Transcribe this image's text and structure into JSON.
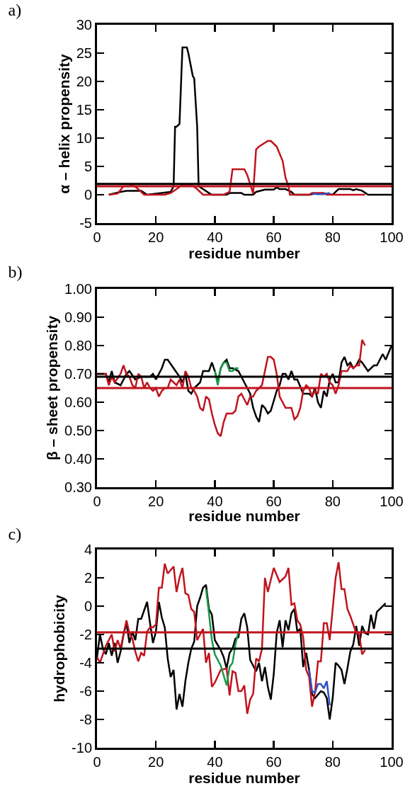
{
  "chart_data": [
    {
      "type": "line",
      "title": "a)",
      "xlabel": "residue number",
      "ylabel": "α – helix propensity",
      "xlim": [
        0,
        100
      ],
      "xticks": [
        0,
        20,
        40,
        60,
        80,
        100
      ],
      "ylim": [
        -5,
        30
      ],
      "yticks": [
        -5,
        0,
        5,
        10,
        15,
        20,
        25,
        30
      ],
      "line_style": "solid",
      "series": [
        {
          "color": "#000000",
          "x": [
            4,
            8,
            10,
            15,
            17,
            20,
            25,
            26,
            26.5,
            27,
            28,
            29,
            30.5,
            31,
            32.5,
            33,
            34,
            34.5,
            36,
            38,
            39,
            44,
            45,
            49,
            50,
            53,
            54,
            57,
            60,
            61,
            62,
            64,
            66,
            67,
            72,
            74,
            78,
            80,
            82,
            86,
            87,
            88,
            90,
            92,
            100
          ],
          "values": [
            0,
            0.5,
            0.7,
            0.7,
            0,
            0.2,
            0.5,
            1.5,
            12,
            12,
            12.5,
            26,
            26,
            25,
            21,
            20.5,
            12,
            1.5,
            1,
            0.3,
            0,
            0,
            0.3,
            0.3,
            0,
            0,
            0.5,
            0.9,
            0.9,
            1.3,
            1,
            1,
            0.5,
            0,
            0,
            0.2,
            0.2,
            0,
            1,
            1,
            0.8,
            1,
            0.7,
            0,
            0
          ]
        },
        {
          "color": "#c0141e",
          "x": [
            4,
            7,
            9,
            11,
            12,
            14,
            16,
            23,
            25,
            27,
            29,
            32,
            34,
            35,
            36,
            43,
            45,
            46,
            50,
            51,
            53,
            54,
            55,
            58,
            59,
            61,
            63,
            64,
            65,
            65.5,
            72,
            73,
            77,
            78,
            91
          ],
          "values": [
            0,
            0.2,
            1.5,
            1.5,
            1.8,
            1,
            0,
            0,
            0.3,
            1,
            1.8,
            1.8,
            1,
            0.5,
            0,
            0,
            0.5,
            4.5,
            4.5,
            3.5,
            0.2,
            8,
            8.5,
            9.5,
            9.5,
            8.5,
            6,
            3,
            1.5,
            0,
            0,
            0.3,
            0.3,
            0,
            0
          ]
        },
        {
          "color": "#3050c0",
          "x": [
            73,
            75,
            77,
            79
          ],
          "values": [
            0.2,
            0.1,
            0.1,
            0.3
          ]
        }
      ],
      "ref_lines": [
        {
          "axis": "y",
          "value": 1.9,
          "color": "#000000"
        },
        {
          "axis": "y",
          "value": 1.5,
          "color": "#c0141e"
        }
      ]
    },
    {
      "type": "line",
      "title": "b)",
      "xlabel": "residue number",
      "ylabel": "β – sheet propensity",
      "xlim": [
        0,
        100
      ],
      "xticks": [
        0,
        20,
        40,
        60,
        80,
        100
      ],
      "ylim": [
        0.3,
        1.0
      ],
      "yticks": [
        {
          "value": 0.3,
          "label": "0.30"
        },
        {
          "value": 0.4,
          "label": "0.40"
        },
        {
          "value": 0.5,
          "label": "0.50"
        },
        {
          "value": 0.6,
          "label": "0.60"
        },
        {
          "value": 0.7,
          "label": "0.70"
        },
        {
          "value": 0.8,
          "label": "0.80"
        },
        {
          "value": 0.9,
          "label": "0.90"
        },
        {
          "value": 1.0,
          "label": "1.00"
        }
      ],
      "line_style": "solid",
      "series": [
        {
          "color": "#000000",
          "x": [
            0,
            3,
            4,
            5,
            6,
            8,
            10,
            11,
            13,
            15,
            16,
            18,
            19,
            20,
            22,
            23,
            24,
            26,
            28,
            29,
            30,
            31,
            32,
            33,
            35,
            36,
            37,
            38,
            39,
            40,
            41,
            42,
            43,
            44,
            45,
            46,
            48,
            50,
            52,
            53,
            54,
            55,
            56,
            57,
            58,
            59,
            61,
            62,
            63,
            64,
            65,
            66,
            67,
            68,
            70,
            72,
            73,
            74,
            75,
            76,
            77,
            78,
            79,
            80,
            81,
            82,
            83,
            84,
            85,
            86,
            87,
            88,
            89,
            90,
            92,
            94,
            95,
            97,
            98,
            100
          ],
          "values": [
            0.7,
            0.7,
            0.67,
            0.71,
            0.67,
            0.66,
            0.7,
            0.71,
            0.68,
            0.69,
            0.69,
            0.69,
            0.7,
            0.68,
            0.72,
            0.75,
            0.75,
            0.72,
            0.69,
            0.67,
            0.7,
            0.64,
            0.63,
            0.65,
            0.67,
            0.71,
            0.71,
            0.71,
            0.74,
            0.71,
            0.67,
            0.72,
            0.74,
            0.75,
            0.72,
            0.72,
            0.71,
            0.67,
            0.63,
            0.58,
            0.55,
            0.53,
            0.59,
            0.58,
            0.56,
            0.57,
            0.64,
            0.66,
            0.7,
            0.7,
            0.68,
            0.71,
            0.68,
            0.68,
            0.63,
            0.63,
            0.62,
            0.65,
            0.6,
            0.58,
            0.64,
            0.62,
            0.68,
            0.7,
            0.67,
            0.67,
            0.74,
            0.76,
            0.73,
            0.74,
            0.72,
            0.73,
            0.75,
            0.74,
            0.71,
            0.73,
            0.73,
            0.77,
            0.75,
            0.8
          ]
        },
        {
          "color": "#c0141e",
          "x": [
            0,
            3,
            4,
            5,
            6,
            8,
            9,
            10,
            11,
            12,
            13,
            14,
            15,
            16,
            17,
            18,
            19,
            20,
            21,
            22,
            23,
            24,
            25,
            26,
            27,
            28,
            29,
            30,
            31,
            32,
            33,
            34,
            35,
            36,
            37,
            38,
            39,
            40,
            41,
            42,
            43,
            44,
            45,
            46,
            47,
            48,
            49,
            50,
            51,
            52,
            53,
            54,
            55,
            56,
            57,
            58,
            59,
            60,
            61,
            62,
            63,
            64,
            65,
            66,
            67,
            68,
            69,
            70,
            71,
            72,
            73,
            74,
            75,
            76,
            77,
            78,
            79,
            80,
            81,
            82,
            83,
            84,
            85,
            86,
            87,
            88,
            89,
            90,
            91
          ],
          "values": [
            0.7,
            0.7,
            0.66,
            0.69,
            0.67,
            0.7,
            0.73,
            0.7,
            0.69,
            0.66,
            0.65,
            0.7,
            0.69,
            0.65,
            0.67,
            0.65,
            0.64,
            0.65,
            0.62,
            0.64,
            0.65,
            0.65,
            0.68,
            0.67,
            0.66,
            0.68,
            0.65,
            0.71,
            0.69,
            0.65,
            0.64,
            0.62,
            0.58,
            0.57,
            0.62,
            0.61,
            0.56,
            0.52,
            0.49,
            0.48,
            0.53,
            0.56,
            0.56,
            0.56,
            0.57,
            0.62,
            0.63,
            0.61,
            0.59,
            0.62,
            0.62,
            0.64,
            0.65,
            0.66,
            0.71,
            0.76,
            0.76,
            0.75,
            0.7,
            0.62,
            0.6,
            0.58,
            0.58,
            0.58,
            0.54,
            0.55,
            0.58,
            0.64,
            0.66,
            0.65,
            0.62,
            0.64,
            0.63,
            0.7,
            0.69,
            0.7,
            0.67,
            0.66,
            0.63,
            0.66,
            0.71,
            0.71,
            0.71,
            0.73,
            0.72,
            0.73,
            0.73,
            0.82,
            0.8
          ]
        },
        {
          "color": "#1a9a4a",
          "x": [
            40,
            41,
            42,
            43,
            44,
            45,
            46,
            47,
            48
          ],
          "values": [
            0.71,
            0.66,
            0.72,
            0.74,
            0.74,
            0.71,
            0.71,
            0.72,
            0.72
          ]
        }
      ],
      "ref_lines": [
        {
          "axis": "y",
          "value": 0.69,
          "color": "#000000"
        },
        {
          "axis": "y",
          "value": 0.65,
          "color": "#c0141e"
        }
      ]
    },
    {
      "type": "line",
      "title": "c)",
      "xlabel": "residue number",
      "ylabel": "hydrophobicity",
      "xlim": [
        0,
        100
      ],
      "xticks": [
        0,
        20,
        40,
        60,
        80,
        100
      ],
      "ylim": [
        -10,
        4
      ],
      "yticks": [
        -10,
        -8,
        -6,
        -4,
        -2,
        0,
        2,
        4
      ],
      "line_style": "solid",
      "series": [
        {
          "color": "#000000",
          "x": [
            0,
            1,
            2,
            3,
            4,
            5,
            6,
            7,
            8,
            9,
            10,
            11,
            12,
            13,
            14,
            15,
            16,
            17,
            18,
            19,
            20,
            21,
            22,
            23,
            24,
            25,
            26,
            27,
            28,
            29,
            30,
            31,
            32,
            33,
            34,
            35,
            36,
            37,
            38,
            39,
            40,
            42,
            43,
            44,
            45,
            46,
            47,
            48,
            49,
            50,
            51,
            52,
            53,
            54,
            55,
            56,
            57,
            58,
            59,
            60,
            61,
            62,
            63,
            64,
            65,
            66,
            67,
            68,
            69,
            70,
            71,
            72,
            73,
            74,
            76,
            77,
            78,
            79,
            80,
            81,
            82,
            83,
            84,
            85,
            86,
            87,
            88,
            89,
            90,
            91,
            92,
            93,
            94,
            95,
            98
          ],
          "values": [
            -3.6,
            -2,
            -3,
            -3.4,
            -2.6,
            -3.5,
            -2.6,
            -4,
            -3.2,
            -2,
            -1.2,
            -2.6,
            -1.8,
            -2.4,
            -0.9,
            -0.9,
            -0.3,
            0.3,
            -1.2,
            -2.6,
            -1.8,
            0.3,
            -0.8,
            -1.5,
            -3.7,
            -5,
            -4.5,
            -7.3,
            -6.2,
            -7.1,
            -5.3,
            -4,
            -3,
            -2.5,
            0,
            0.6,
            1.3,
            1.5,
            -0.2,
            -0.6,
            -2.4,
            -3.1,
            -3.6,
            -4.4,
            -3.3,
            -3,
            -2.3,
            -2.2,
            -0.9,
            -0.5,
            -1.5,
            -3.8,
            -4.2,
            -4.6,
            -4,
            -5.3,
            -4.3,
            -5.7,
            -6.6,
            -4.8,
            -1.9,
            -1,
            -2.9,
            -1,
            -1.7,
            -0.5,
            -0.2,
            -1.8,
            -1.6,
            -4.3,
            -3.3,
            -4.5,
            -6.2,
            -6.5,
            -6,
            -6.1,
            -6.5,
            -8,
            -6.5,
            -4,
            -4.2,
            -4.5,
            -5.5,
            -4.4,
            -3.2,
            -2.7,
            -1.4,
            -2.8,
            -1.4,
            -1.9,
            -2,
            -0.6,
            -1.6,
            -0.4,
            0.2
          ]
        },
        {
          "color": "#c0141e",
          "x": [
            0,
            1,
            3,
            5,
            6,
            7,
            8,
            9,
            10,
            11,
            12,
            13,
            14,
            15,
            16,
            17,
            18,
            19,
            20,
            21,
            22,
            23,
            24,
            26,
            27,
            28,
            29,
            30,
            31,
            32,
            33,
            34,
            35,
            36,
            37,
            38,
            39,
            40,
            42,
            44,
            45,
            46,
            47,
            48,
            49,
            50,
            51,
            52,
            53,
            54,
            55,
            56,
            57,
            58,
            60,
            62,
            64,
            65,
            66,
            67,
            68,
            69,
            70,
            71,
            72,
            73,
            74,
            75,
            76,
            77,
            78,
            79,
            80,
            81,
            82,
            83,
            84,
            85,
            86,
            87,
            88,
            89,
            90,
            91
          ],
          "values": [
            -3.6,
            -4,
            -2.8,
            -2,
            -3.2,
            -2.4,
            -3,
            -2,
            -1,
            -1.9,
            -2.3,
            -3.2,
            -3.9,
            -3.3,
            -3.5,
            -1.8,
            -1.5,
            -1.5,
            -1.3,
            1.3,
            1.3,
            3,
            2.3,
            2.8,
            1,
            2,
            2.7,
            0.9,
            0.8,
            -0.2,
            -0.4,
            -2.4,
            -2,
            -1.6,
            -4,
            -3.3,
            -5.7,
            -5.4,
            -4.5,
            -4.4,
            -6.3,
            -4.6,
            -4.7,
            -6,
            -6,
            -5.6,
            -7.6,
            -6.6,
            -6.2,
            -3.7,
            -3.9,
            -3,
            2,
            1,
            2.7,
            1.7,
            2.1,
            2.7,
            0.1,
            0.2,
            -1,
            -1.3,
            -2.2,
            -4.5,
            -5,
            -7.1,
            -6.1,
            -3.9,
            -3.9,
            -1.2,
            -1.2,
            -2.4,
            -0.2,
            2,
            3.1,
            1.2,
            1.2,
            -0.2,
            -0.7,
            -1.3,
            -1.9,
            -2,
            -3.4,
            -3.1
          ]
        },
        {
          "color": "#1a9a4a",
          "x": [
            37,
            38,
            39,
            40,
            42,
            44,
            45,
            46,
            47,
            48
          ],
          "values": [
            1.2,
            -0.5,
            -2.4,
            -3.4,
            -4.2,
            -5.6,
            -4.3,
            -4,
            -2.7,
            -1.8
          ]
        },
        {
          "color": "#3050c0",
          "x": [
            72,
            73,
            74,
            75,
            76,
            77,
            78,
            79
          ],
          "values": [
            -4.5,
            -6,
            -6.1,
            -5.5,
            -5.5,
            -5.8,
            -5.3,
            -7
          ]
        }
      ],
      "ref_lines": [
        {
          "axis": "y",
          "value": -1.85,
          "color": "#c0141e"
        },
        {
          "axis": "y",
          "value": -3.0,
          "color": "#000000"
        }
      ]
    }
  ]
}
